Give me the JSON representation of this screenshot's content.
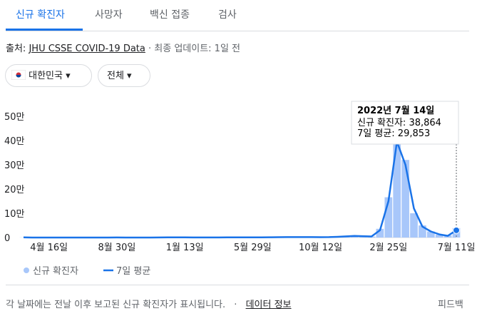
{
  "tabs": [
    "신규 확진자",
    "사망자",
    "백신 접종",
    "검사"
  ],
  "source": {
    "prefix": "출처:",
    "link": "JHU CSSE COVID-19 Data",
    "updated": "· 최종 업데이트: 1일 전"
  },
  "filters": [
    "대한민국",
    "전체"
  ],
  "chart_data": {
    "type": "bar_line",
    "categories": [
      null,
      null,
      null,
      "4월 16일",
      null,
      null,
      null,
      null,
      null,
      null,
      null,
      "8월 30일",
      null,
      null,
      null,
      null,
      null,
      null,
      null,
      "1월 13일",
      null,
      null,
      null,
      null,
      null,
      null,
      null,
      "5월 29일",
      null,
      null,
      null,
      null,
      null,
      null,
      null,
      "10월 12일",
      null,
      null,
      null,
      null,
      null,
      null,
      null,
      "2월 25일",
      null,
      null,
      null,
      null,
      null,
      null,
      null,
      "7월 11일"
    ],
    "series": [
      {
        "name": "신규 확진자",
        "kind": "bar",
        "color": "#a8c7fa",
        "values": [
          600,
          90,
          90,
          20,
          10,
          30,
          50,
          50,
          40,
          60,
          100,
          300,
          110,
          70,
          100,
          120,
          350,
          600,
          1000,
          870,
          400,
          450,
          400,
          450,
          500,
          700,
          600,
          500,
          700,
          1200,
          1500,
          1800,
          1600,
          2000,
          1700,
          1300,
          2000,
          3200,
          5000,
          7000,
          5500,
          4000,
          36000,
          166000,
          420000,
          320000,
          100000,
          50000,
          25000,
          12000,
          9000,
          38864
        ]
      },
      {
        "name": "7일 평균",
        "kind": "line",
        "color": "#1a73e8",
        "values": [
          500,
          100,
          80,
          25,
          12,
          28,
          45,
          48,
          42,
          55,
          90,
          250,
          120,
          75,
          95,
          115,
          320,
          560,
          950,
          850,
          420,
          440,
          410,
          440,
          490,
          650,
          600,
          520,
          680,
          1150,
          1450,
          1750,
          1650,
          1900,
          1750,
          1400,
          1900,
          3000,
          4700,
          6600,
          5600,
          4300,
          30000,
          150000,
          395000,
          300000,
          120000,
          45000,
          25000,
          13000,
          7000,
          29853
        ]
      }
    ],
    "ylim": [
      0,
      500000
    ],
    "yticks": [
      0,
      {
        "value": 100000,
        "label": "10만"
      },
      {
        "value": 200000,
        "label": "20만"
      },
      {
        "value": 300000,
        "label": "30만"
      },
      {
        "value": 400000,
        "label": "40만"
      },
      {
        "value": 500000,
        "label": "50만"
      }
    ],
    "grid": false,
    "tooltip": {
      "date": "2022년 7월 14일",
      "lines": [
        "신규 확진자: 38,864",
        "7일 평균: 29,853"
      ]
    }
  },
  "footer": {
    "note": "각 날짜에는 전날 이후 보고된 신규 확진자가 표시됩니다.",
    "sep": "·",
    "link": "데이터 정보",
    "feedback": "피드백"
  }
}
